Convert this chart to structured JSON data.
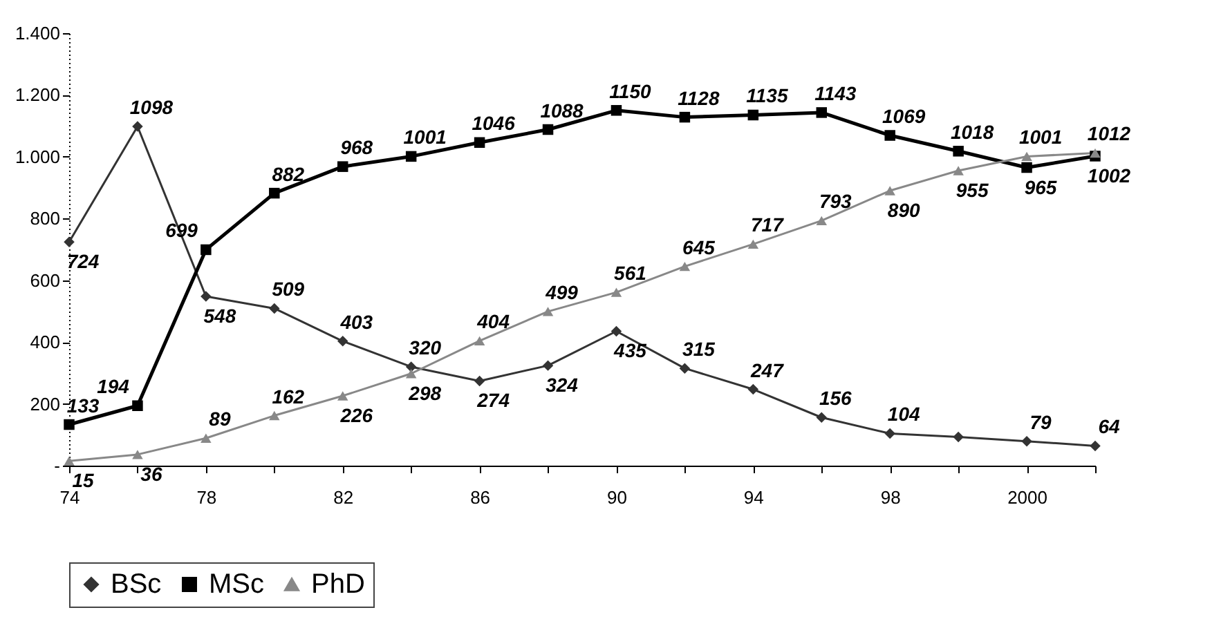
{
  "chart_data": {
    "type": "line",
    "categories": [
      "74",
      null,
      "78",
      null,
      "82",
      null,
      "86",
      null,
      "90",
      null,
      "94",
      null,
      "98",
      null,
      "2000",
      null
    ],
    "ylim": [
      0,
      1400
    ],
    "yticks": [
      {
        "value": 0,
        "label": "-"
      },
      200,
      400,
      600,
      800,
      {
        "value": 1000,
        "label": "1.000"
      },
      {
        "value": 1200,
        "label": "1.200"
      },
      {
        "value": 1400,
        "label": "1.400"
      }
    ],
    "grid": false,
    "legend": "bottom",
    "data_labels": true,
    "series": [
      {
        "name": "BSc",
        "color": "#333333",
        "marker": "diamond",
        "values": [
          724,
          1098,
          548,
          509,
          403,
          320,
          274,
          324,
          435,
          315,
          247,
          156,
          104,
          93,
          79,
          64
        ],
        "value_labels": [
          "724",
          "1098",
          "548",
          "509",
          "403",
          "320",
          "274",
          "324",
          "435",
          "315",
          "247",
          "156",
          "104",
          null,
          "79",
          "64"
        ]
      },
      {
        "name": "MSc",
        "color": "#000000",
        "marker": "square",
        "values": [
          133,
          194,
          699,
          882,
          968,
          1001,
          1046,
          1088,
          1150,
          1128,
          1135,
          1143,
          1069,
          1018,
          965,
          1002
        ],
        "value_labels": [
          "133",
          "194",
          "699",
          "882",
          "968",
          "1001",
          "1046",
          "1088",
          "1150",
          "1128",
          "1135",
          "1143",
          "1069",
          "1018",
          "965",
          "1002"
        ]
      },
      {
        "name": "PhD",
        "color": "#888888",
        "marker": "triangle",
        "values": [
          15,
          36,
          89,
          162,
          226,
          298,
          404,
          499,
          561,
          645,
          717,
          793,
          890,
          955,
          1001,
          1012
        ],
        "value_labels": [
          "15",
          "36",
          "89",
          "162",
          "226",
          "298",
          "404",
          "499",
          "561",
          "645",
          "717",
          "793",
          "890",
          "955",
          "1001",
          "1012"
        ]
      }
    ]
  }
}
